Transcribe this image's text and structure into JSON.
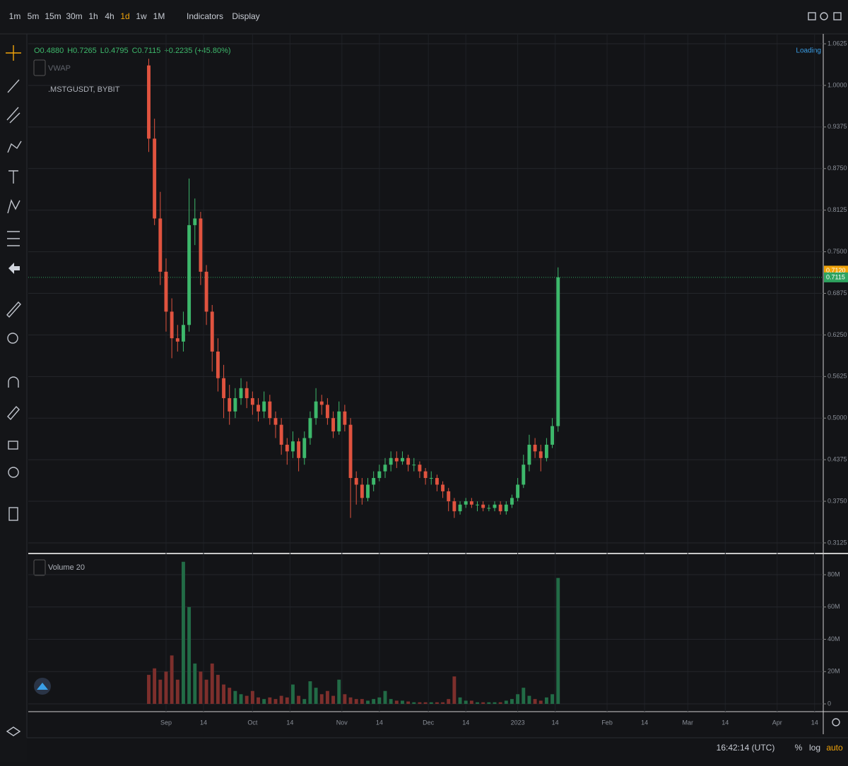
{
  "toolbar": {
    "timeframes": [
      "1m",
      "5m",
      "15m",
      "30m",
      "1h",
      "4h",
      "1d",
      "1w",
      "1M"
    ],
    "active": 6,
    "menus": [
      "Indicators",
      "Display"
    ]
  },
  "header": {
    "ohlc": [
      "O0.4880",
      "H0.7265",
      "L0.4795",
      "C0.7115",
      "+0.2235 (+45.80%)"
    ],
    "indicator": "VWAP",
    "symbol": ".MSTGUSDT, BYBIT",
    "status": "Loading"
  },
  "footer": {
    "clock": "16:42:14 (UTC)",
    "buttons": [
      "%",
      "log",
      "auto"
    ]
  },
  "chart_data": {
    "type": "candlestick",
    "up_color": "#3db86b",
    "down_color": "#e0533f",
    "x": [
      -6,
      -4,
      -2,
      0,
      2,
      4,
      6,
      8,
      10,
      12,
      14,
      16,
      18,
      20,
      22,
      24,
      26,
      28,
      30,
      32,
      34,
      36,
      38,
      40,
      42,
      44,
      46,
      48,
      50,
      52,
      54,
      56,
      58,
      60,
      62,
      64,
      66,
      68,
      70,
      72,
      74,
      76,
      78,
      80,
      82,
      84,
      86,
      88,
      90,
      92,
      94,
      96,
      98,
      100,
      102,
      104,
      106,
      108,
      110,
      112,
      114,
      116,
      118,
      120,
      122,
      124,
      126,
      128,
      130,
      132,
      134,
      136
    ],
    "open": [
      1.03,
      0.92,
      0.8,
      0.72,
      0.66,
      0.62,
      0.615,
      0.64,
      0.79,
      0.8,
      0.72,
      0.66,
      0.6,
      0.56,
      0.53,
      0.51,
      0.53,
      0.545,
      0.53,
      0.52,
      0.51,
      0.525,
      0.5,
      0.49,
      0.46,
      0.45,
      0.465,
      0.44,
      0.47,
      0.5,
      0.525,
      0.52,
      0.5,
      0.48,
      0.51,
      0.49,
      0.41,
      0.4,
      0.38,
      0.4,
      0.41,
      0.42,
      0.43,
      0.44,
      0.435,
      0.44,
      0.43,
      0.43,
      0.42,
      0.41,
      0.41,
      0.4,
      0.39,
      0.375,
      0.36,
      0.37,
      0.375,
      0.37,
      0.37,
      0.365,
      0.365,
      0.37,
      0.36,
      0.37,
      0.38,
      0.4,
      0.43,
      0.46,
      0.45,
      0.44,
      0.46,
      0.488
    ],
    "high": [
      1.04,
      0.95,
      0.84,
      0.74,
      0.68,
      0.64,
      0.66,
      0.86,
      0.83,
      0.81,
      0.73,
      0.67,
      0.62,
      0.58,
      0.55,
      0.545,
      0.56,
      0.555,
      0.54,
      0.53,
      0.54,
      0.535,
      0.51,
      0.5,
      0.47,
      0.48,
      0.47,
      0.48,
      0.51,
      0.545,
      0.535,
      0.53,
      0.51,
      0.525,
      0.52,
      0.5,
      0.42,
      0.41,
      0.41,
      0.42,
      0.43,
      0.44,
      0.45,
      0.45,
      0.45,
      0.445,
      0.44,
      0.435,
      0.425,
      0.42,
      0.415,
      0.405,
      0.395,
      0.38,
      0.375,
      0.38,
      0.38,
      0.375,
      0.375,
      0.37,
      0.375,
      0.375,
      0.375,
      0.385,
      0.41,
      0.445,
      0.475,
      0.47,
      0.46,
      0.47,
      0.5,
      0.7265
    ],
    "low": [
      0.9,
      0.79,
      0.7,
      0.63,
      0.59,
      0.6,
      0.6,
      0.63,
      0.76,
      0.7,
      0.64,
      0.57,
      0.54,
      0.5,
      0.49,
      0.5,
      0.52,
      0.515,
      0.505,
      0.495,
      0.5,
      0.49,
      0.47,
      0.445,
      0.43,
      0.44,
      0.42,
      0.43,
      0.46,
      0.49,
      0.505,
      0.49,
      0.47,
      0.475,
      0.48,
      0.35,
      0.37,
      0.37,
      0.375,
      0.39,
      0.405,
      0.41,
      0.42,
      0.425,
      0.43,
      0.42,
      0.42,
      0.41,
      0.4,
      0.4,
      0.39,
      0.38,
      0.36,
      0.35,
      0.355,
      0.365,
      0.365,
      0.36,
      0.36,
      0.36,
      0.36,
      0.355,
      0.355,
      0.365,
      0.375,
      0.395,
      0.42,
      0.44,
      0.42,
      0.435,
      0.455,
      0.4795
    ],
    "close": [
      0.92,
      0.8,
      0.72,
      0.66,
      0.62,
      0.615,
      0.64,
      0.79,
      0.8,
      0.72,
      0.66,
      0.6,
      0.56,
      0.53,
      0.51,
      0.53,
      0.545,
      0.53,
      0.52,
      0.51,
      0.525,
      0.5,
      0.49,
      0.46,
      0.45,
      0.465,
      0.44,
      0.47,
      0.5,
      0.525,
      0.52,
      0.5,
      0.48,
      0.51,
      0.49,
      0.41,
      0.4,
      0.38,
      0.4,
      0.41,
      0.42,
      0.43,
      0.44,
      0.435,
      0.44,
      0.43,
      0.43,
      0.42,
      0.41,
      0.41,
      0.4,
      0.39,
      0.375,
      0.36,
      0.37,
      0.375,
      0.37,
      0.37,
      0.365,
      0.365,
      0.37,
      0.36,
      0.37,
      0.38,
      0.4,
      0.43,
      0.46,
      0.45,
      0.44,
      0.46,
      0.488,
      0.7115
    ],
    "xlim": [
      -47.8,
      228
    ],
    "xticks": [
      {
        "value": 0,
        "label": "Sep"
      },
      {
        "value": 13,
        "label": "14"
      },
      {
        "value": 30,
        "label": "Oct"
      },
      {
        "value": 43,
        "label": "14"
      },
      {
        "value": 61,
        "label": "Nov"
      },
      {
        "value": 74,
        "label": "14"
      },
      {
        "value": 91,
        "label": "Dec"
      },
      {
        "value": 104,
        "label": "14"
      },
      {
        "value": 122,
        "label": "2023"
      },
      {
        "value": 135,
        "label": "14"
      },
      {
        "value": 153,
        "label": "Feb"
      },
      {
        "value": 166,
        "label": "14"
      },
      {
        "value": 181,
        "label": "Mar"
      },
      {
        "value": 194,
        "label": "14"
      },
      {
        "value": 212,
        "label": "Apr"
      },
      {
        "value": 225,
        "label": "14"
      }
    ],
    "ylim": [
      0.2976,
      1.0774
    ],
    "yticks": [
      1.0625,
      {
        "value": 1,
        "label": "1.0000"
      },
      0.9375,
      {
        "value": 0.875,
        "label": "0.8750"
      },
      0.8125,
      {
        "value": 0.75,
        "label": "0.7500"
      },
      0.6875,
      {
        "value": 0.625,
        "label": "0.6250"
      },
      0.5625,
      {
        "value": 0.5,
        "label": "0.5000"
      },
      0.4375,
      {
        "value": 0.375,
        "label": "0.3750"
      },
      0.3125
    ],
    "price_lines": [
      {
        "value": 0.712,
        "label": "0.7120",
        "color": "#f0a30a"
      },
      {
        "value": 0.7115,
        "color": "#2ea35f"
      }
    ],
    "volume": {
      "name": "Volume 20",
      "up_color": "#226b46",
      "down_color": "#7d2f2c",
      "values": [
        18000000,
        22000000,
        15000000,
        20000000,
        30000000,
        15000000,
        88000000,
        60000000,
        25000000,
        20000000,
        15000000,
        25000000,
        18000000,
        12000000,
        10000000,
        8000000,
        6000000,
        5000000,
        8000000,
        4000000,
        3000000,
        4000000,
        3000000,
        5000000,
        4000000,
        12000000,
        5000000,
        3000000,
        14000000,
        10000000,
        6000000,
        8000000,
        5000000,
        15000000,
        6000000,
        4000000,
        3000000,
        3000000,
        2000000,
        3000000,
        4000000,
        8000000,
        3000000,
        2000000,
        2000000,
        1500000,
        1000000,
        1000000,
        1000000,
        1000000,
        1000000,
        1000000,
        3000000,
        17000000,
        4000000,
        2000000,
        2000000,
        1000000,
        1000000,
        1000000,
        1000000,
        1000000,
        2000000,
        3000000,
        6000000,
        10000000,
        5000000,
        3000000,
        2000000,
        4000000,
        6000000,
        78000000
      ],
      "ylim": [
        -4800000,
        92700000
      ],
      "yticks": [
        {
          "value": 80000000,
          "label": "80M"
        },
        {
          "value": 60000000,
          "label": "60M"
        },
        {
          "value": 40000000,
          "label": "40M"
        },
        {
          "value": 20000000,
          "label": "20M"
        },
        0
      ]
    }
  }
}
